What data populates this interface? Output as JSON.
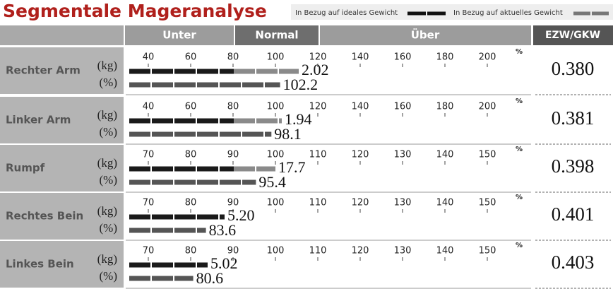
{
  "title": "Segmentale Mageranalyse",
  "legend": [
    "In Bezug auf ideales Gewicht",
    "In Bezug auf aktuelles Gewicht"
  ],
  "header": {
    "columns": [
      "Unter",
      "Normal",
      "Über",
      "EZW/GKW"
    ]
  },
  "units": {
    "kg": "(kg)",
    "percent": "(%)",
    "symbol": "%"
  },
  "rows": [
    {
      "label": "Rechter Arm",
      "xlim": [
        31,
        220
      ],
      "ticks": [
        40,
        60,
        80,
        100,
        120,
        140,
        160,
        180,
        200
      ],
      "kg": 2.02,
      "kg_bar_percent": 111,
      "percent": 102.2,
      "ratio": 0.38,
      "ratio_label": "0.380"
    },
    {
      "label": "Linker Arm",
      "xlim": [
        31,
        220
      ],
      "ticks": [
        40,
        60,
        80,
        100,
        120,
        140,
        160,
        180,
        200
      ],
      "kg": 1.94,
      "kg_bar_percent": 103,
      "percent": 98.1,
      "ratio": 0.381
    },
    {
      "label": "Rumpf",
      "xlim": [
        65.5,
        160
      ],
      "ticks": [
        70,
        80,
        90,
        100,
        110,
        120,
        130,
        140,
        150
      ],
      "kg": 17.7,
      "kg_bar_percent": 100,
      "percent": 95.4,
      "ratio": 0.398
    },
    {
      "label": "Rechtes Bein",
      "xlim": [
        65.5,
        160
      ],
      "ticks": [
        70,
        80,
        90,
        100,
        110,
        120,
        130,
        140,
        150
      ],
      "kg": 5.2,
      "kg_label": "5.20",
      "kg_bar_percent": 88,
      "percent": 83.6,
      "ratio": 0.401
    },
    {
      "label": "Linkes Bein",
      "xlim": [
        65.5,
        160
      ],
      "ticks": [
        70,
        80,
        90,
        100,
        110,
        120,
        130,
        140,
        150
      ],
      "kg": 5.02,
      "kg_bar_percent": 84,
      "percent": 80.6,
      "ratio": 0.403
    }
  ]
}
